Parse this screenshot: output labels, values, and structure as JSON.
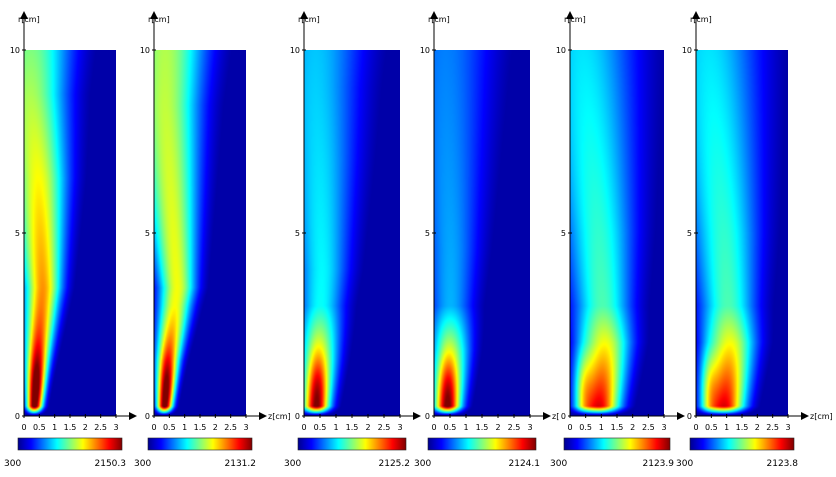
{
  "chart_data": [
    {
      "type": "heatmap",
      "xlabel": "",
      "ylabel": "r[cm]",
      "x_ticks": [
        "0",
        "0.5",
        "1",
        "1.5",
        "2",
        "2.5",
        "3"
      ],
      "y_ticks": [
        "0",
        "5",
        "10"
      ],
      "xlim": [
        0,
        3
      ],
      "ylim": [
        0,
        10
      ],
      "colorbar": {
        "min": "300",
        "max": "2150.3",
        "colormap": "jet"
      },
      "field": {
        "base_peak": 0.92,
        "base_width": 0.16,
        "front_r": [
          1.2,
          3.5,
          6.5,
          8.8
        ],
        "front_z": [
          0.3,
          0.4,
          0.6,
          0.45,
          0.2
        ],
        "shaft_level": 0.75,
        "top_level": 0.5
      }
    },
    {
      "type": "heatmap",
      "xlabel": "z[cm]",
      "ylabel": "r[cm]",
      "x_ticks": [
        "0",
        "0.5",
        "1",
        "1.5",
        "2",
        "2.5",
        "3"
      ],
      "y_ticks": [
        "0",
        "5",
        "10"
      ],
      "xlim": [
        0,
        3
      ],
      "ylim": [
        0,
        10
      ],
      "colorbar": {
        "min": "300",
        "max": "2131.2",
        "colormap": "jet"
      },
      "field": {
        "base_peak": 0.92,
        "base_width": 0.16,
        "front_r": [
          1.5,
          3.5,
          6.0,
          8.5
        ],
        "front_z": [
          0.3,
          0.45,
          0.75,
          0.55,
          0.35
        ],
        "shaft_level": 0.62,
        "top_level": 0.55
      }
    },
    {
      "type": "heatmap",
      "xlabel": "",
      "ylabel": "r[cm]",
      "x_ticks": [
        "0",
        "0.5",
        "1",
        "1.5",
        "2",
        "2.5",
        "3"
      ],
      "y_ticks": [
        "0",
        "5",
        "10"
      ],
      "xlim": [
        0,
        3
      ],
      "ylim": [
        0,
        10
      ],
      "colorbar": {
        "min": "300",
        "max": "2125.2",
        "colormap": "jet"
      },
      "field": {
        "base_peak": 0.9,
        "base_width": 0.3,
        "front_r": [
          1.5,
          4.0,
          7.0,
          9.0
        ],
        "front_z": [
          0.35,
          0.45,
          0.55,
          0.45,
          0.35
        ],
        "shaft_level": 0.38,
        "top_level": 0.32
      }
    },
    {
      "type": "heatmap",
      "xlabel": "z[",
      "ylabel": "r[cm]",
      "x_ticks": [
        "0",
        "0.5",
        "1",
        "1.5",
        "2",
        "2.5",
        "3"
      ],
      "y_ticks": [
        "0",
        "5",
        "10"
      ],
      "xlim": [
        0,
        3
      ],
      "ylim": [
        0,
        10
      ],
      "colorbar": {
        "min": "300",
        "max": "2124.1",
        "colormap": "jet"
      },
      "field": {
        "base_peak": 0.92,
        "base_width": 0.3,
        "front_r": [
          1.8,
          4.5,
          7.5,
          9.5
        ],
        "front_z": [
          0.4,
          0.5,
          0.5,
          0.4,
          0.35
        ],
        "shaft_level": 0.3,
        "top_level": 0.25
      }
    },
    {
      "type": "heatmap",
      "xlabel": "",
      "ylabel": "r[cm]",
      "x_ticks": [
        "0",
        "0.5",
        "1",
        "1.5",
        "2",
        "2.5",
        "3"
      ],
      "y_ticks": [
        "0",
        "5",
        "10"
      ],
      "xlim": [
        0,
        3
      ],
      "ylim": [
        0,
        10
      ],
      "colorbar": {
        "min": "300",
        "max": "2123.9",
        "colormap": "jet"
      },
      "field": {
        "base_peak": 0.95,
        "base_width": 0.45,
        "front_r": [
          2.0,
          5.0,
          8.0,
          10.0
        ],
        "front_z": [
          0.9,
          1.1,
          0.9,
          0.6,
          0.4
        ],
        "shaft_level": 0.45,
        "top_level": 0.35
      }
    },
    {
      "type": "heatmap",
      "xlabel": "z[cm]",
      "ylabel": "r[cm]",
      "x_ticks": [
        "0",
        "0.5",
        "1",
        "1.5",
        "2",
        "2.5",
        "3"
      ],
      "y_ticks": [
        "0",
        "5",
        "10"
      ],
      "xlim": [
        0,
        3
      ],
      "ylim": [
        0,
        10
      ],
      "colorbar": {
        "min": "300",
        "max": "2123.8",
        "colormap": "jet"
      },
      "field": {
        "base_peak": 0.95,
        "base_width": 0.45,
        "front_r": [
          2.0,
          5.0,
          8.0,
          10.0
        ],
        "front_z": [
          0.9,
          1.1,
          0.9,
          0.6,
          0.4
        ],
        "shaft_level": 0.45,
        "top_level": 0.35
      }
    }
  ]
}
